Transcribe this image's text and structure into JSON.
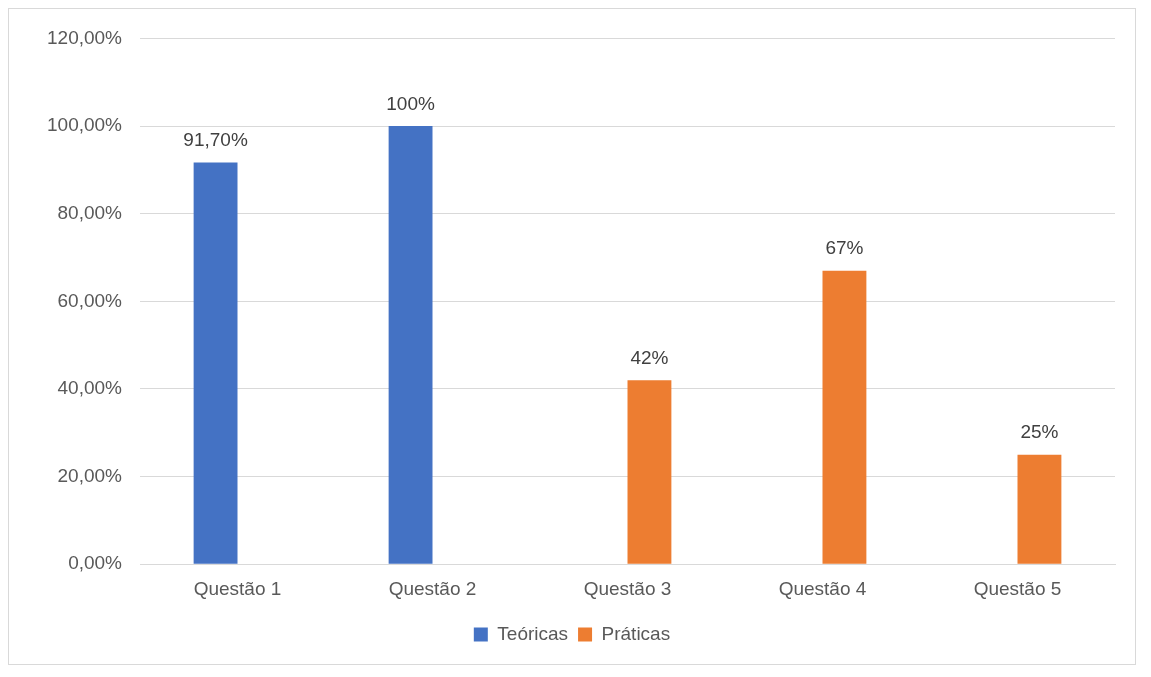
{
  "chart_data": {
    "type": "bar",
    "categories": [
      "Questão 1",
      "Questão 2",
      "Questão 3",
      "Questão 4",
      "Questão 5"
    ],
    "series": [
      {
        "name": "Teóricas",
        "color": "#4472c4",
        "values": [
          91.7,
          100,
          null,
          null,
          null
        ],
        "value_labels": [
          "91,70%",
          "100%",
          null,
          null,
          null
        ]
      },
      {
        "name": "Práticas",
        "color": "#ed7d31",
        "values": [
          null,
          null,
          42,
          67,
          25
        ],
        "value_labels": [
          null,
          null,
          "42%",
          "67%",
          "25%"
        ]
      }
    ],
    "ylim": [
      0,
      120
    ],
    "yticks": [
      {
        "value": 0,
        "label": "0,00%"
      },
      {
        "value": 20,
        "label": "20,00%"
      },
      {
        "value": 40,
        "label": "40,00%"
      },
      {
        "value": 60,
        "label": "60,00%"
      },
      {
        "value": 80,
        "label": "80,00%"
      },
      {
        "value": 100,
        "label": "100,00%"
      },
      {
        "value": 120,
        "label": "120,00%"
      }
    ],
    "grid": "y",
    "legend": "bottom"
  }
}
